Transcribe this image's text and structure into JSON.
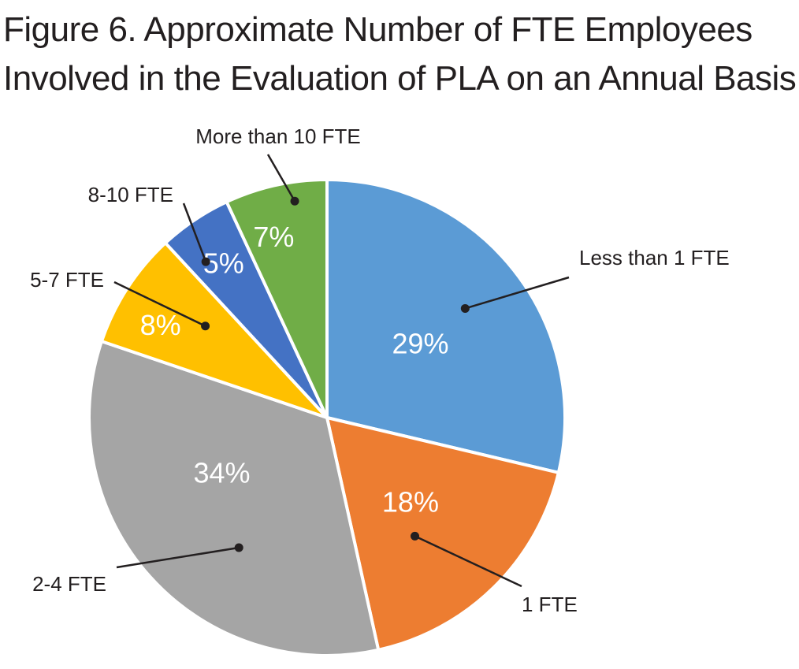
{
  "chart_data": {
    "type": "pie",
    "title": [
      "Figure 6. Approximate Number of FTE Employees",
      "Involved in the Evaluation of PLA on an Annual Basis"
    ],
    "slices": [
      {
        "key": "lt1",
        "category": "Less than 1 FTE",
        "value": 29,
        "label": "29%",
        "color": "#5b9bd5"
      },
      {
        "key": "one",
        "category": "1 FTE",
        "value": 18,
        "label": "18%",
        "color": "#ed7d31"
      },
      {
        "key": "two4",
        "category": "2-4 FTE",
        "value": 34,
        "label": "34%",
        "color": "#a5a5a5"
      },
      {
        "key": "five7",
        "category": "5-7 FTE",
        "value": 8,
        "label": "8%",
        "color": "#ffc000"
      },
      {
        "key": "eight10",
        "category": "8-10 FTE",
        "value": 5,
        "label": "5%",
        "color": "#4472c4"
      },
      {
        "key": "gt10",
        "category": "More than 10 FTE",
        "value": 7,
        "label": "7%",
        "color": "#70ad47"
      }
    ],
    "start": "12 o'clock",
    "direction": "clockwise"
  }
}
